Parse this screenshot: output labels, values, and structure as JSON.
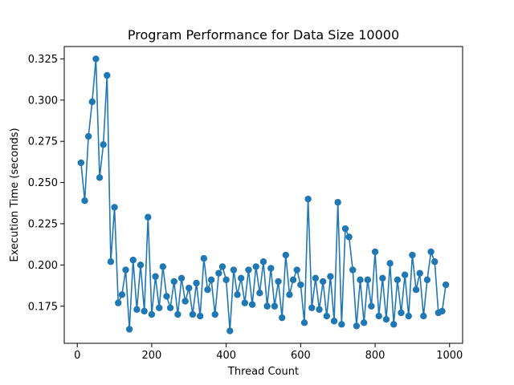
{
  "chart_data": {
    "type": "line",
    "title": "Program Performance for Data Size 10000",
    "xlabel": "Thread Count",
    "ylabel": "Execution Time (seconds)",
    "xlim": [
      -35,
      1035
    ],
    "ylim": [
      0.1525,
      0.3325
    ],
    "xticks": [
      0,
      200,
      400,
      600,
      800,
      1000
    ],
    "xtick_labels": [
      "0",
      "200",
      "400",
      "600",
      "800",
      "1000"
    ],
    "yticks": [
      0.175,
      0.2,
      0.225,
      0.25,
      0.275,
      0.3,
      0.325
    ],
    "ytick_labels": [
      "0.175",
      "0.200",
      "0.225",
      "0.250",
      "0.275",
      "0.300",
      "0.325"
    ],
    "grid": false,
    "series": [
      {
        "color": "#1f77b4",
        "marker": "circle",
        "x": [
          10,
          20,
          30,
          40,
          50,
          60,
          70,
          80,
          90,
          100,
          110,
          120,
          130,
          140,
          150,
          160,
          170,
          180,
          190,
          200,
          210,
          220,
          230,
          240,
          250,
          260,
          270,
          280,
          290,
          300,
          310,
          320,
          330,
          340,
          350,
          360,
          370,
          380,
          390,
          400,
          410,
          420,
          430,
          440,
          450,
          460,
          470,
          480,
          490,
          500,
          510,
          520,
          530,
          540,
          550,
          560,
          570,
          580,
          590,
          600,
          610,
          620,
          630,
          640,
          650,
          660,
          670,
          680,
          690,
          700,
          710,
          720,
          730,
          740,
          750,
          760,
          770,
          780,
          790,
          800,
          810,
          820,
          830,
          840,
          850,
          860,
          870,
          880,
          890,
          900,
          910,
          920,
          930,
          940,
          950,
          960,
          970,
          980,
          990
        ],
        "y": [
          0.262,
          0.239,
          0.278,
          0.299,
          0.325,
          0.253,
          0.273,
          0.315,
          0.202,
          0.235,
          0.177,
          0.182,
          0.197,
          0.161,
          0.203,
          0.173,
          0.2,
          0.172,
          0.229,
          0.17,
          0.193,
          0.174,
          0.199,
          0.181,
          0.174,
          0.19,
          0.17,
          0.192,
          0.178,
          0.186,
          0.17,
          0.189,
          0.169,
          0.204,
          0.185,
          0.191,
          0.17,
          0.195,
          0.199,
          0.191,
          0.16,
          0.197,
          0.182,
          0.192,
          0.177,
          0.197,
          0.176,
          0.199,
          0.183,
          0.202,
          0.175,
          0.198,
          0.175,
          0.19,
          0.168,
          0.206,
          0.182,
          0.191,
          0.197,
          0.188,
          0.165,
          0.24,
          0.174,
          0.192,
          0.173,
          0.19,
          0.169,
          0.193,
          0.166,
          0.238,
          0.164,
          0.222,
          0.217,
          0.197,
          0.163,
          0.191,
          0.165,
          0.191,
          0.175,
          0.208,
          0.169,
          0.192,
          0.167,
          0.201,
          0.164,
          0.191,
          0.171,
          0.194,
          0.169,
          0.206,
          0.185,
          0.195,
          0.169,
          0.191,
          0.208,
          0.202,
          0.171,
          0.172,
          0.188
        ]
      }
    ]
  }
}
